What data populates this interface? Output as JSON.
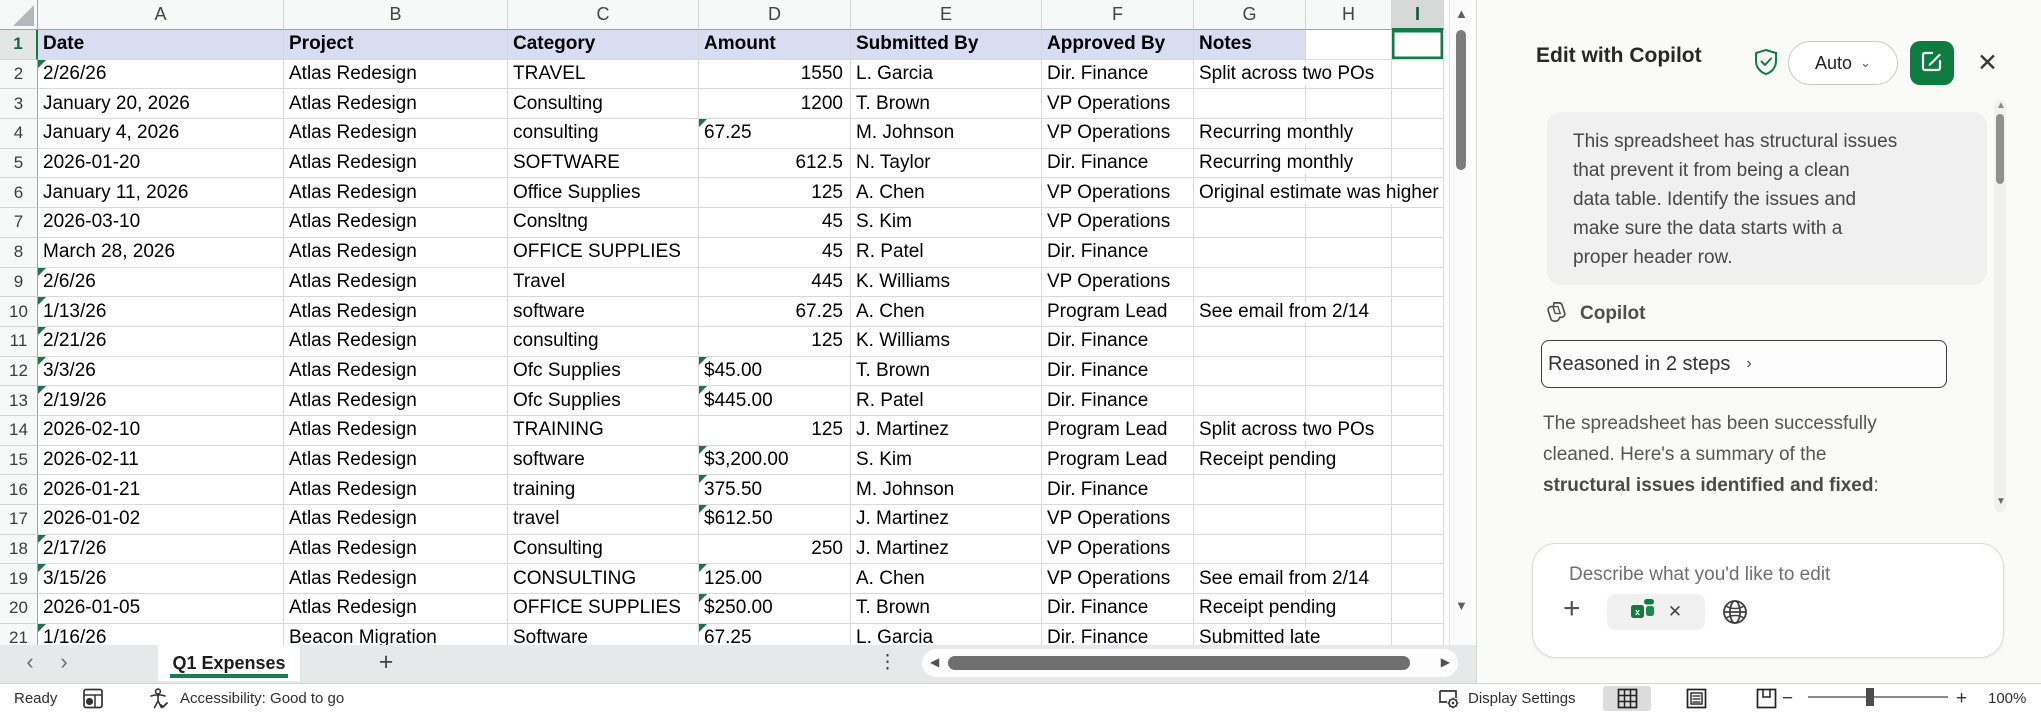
{
  "sheet": {
    "columns": [
      "A",
      "B",
      "C",
      "D",
      "E",
      "F",
      "G",
      "H",
      "I"
    ],
    "selected_column": "I",
    "selected_cell": "I1",
    "header_row": {
      "n": "1",
      "cells": [
        "Date",
        "Project",
        "Category",
        "Amount",
        "Submitted By",
        "Approved By",
        "Notes",
        "",
        ""
      ]
    },
    "rows": [
      {
        "n": "2",
        "date": "2/26/26",
        "date_flag": true,
        "project": "Atlas Redesign",
        "category": "TRAVEL",
        "amount": "1550",
        "amount_left": false,
        "amount_flag": false,
        "submitted": "L. Garcia",
        "approved": "Dir. Finance",
        "notes": "Split across two POs"
      },
      {
        "n": "3",
        "date": "January 20, 2026",
        "date_flag": false,
        "project": "Atlas Redesign",
        "category": "Consulting",
        "amount": "1200",
        "amount_left": false,
        "amount_flag": false,
        "submitted": "T. Brown",
        "approved": "VP Operations",
        "notes": ""
      },
      {
        "n": "4",
        "date": "January 4, 2026",
        "date_flag": false,
        "project": "Atlas Redesign",
        "category": "consulting",
        "amount": "67.25",
        "amount_left": true,
        "amount_flag": true,
        "submitted": "M. Johnson",
        "approved": "VP Operations",
        "notes": "Recurring monthly"
      },
      {
        "n": "5",
        "date": "2026-01-20",
        "date_flag": false,
        "project": "Atlas Redesign",
        "category": "SOFTWARE",
        "amount": "612.5",
        "amount_left": false,
        "amount_flag": false,
        "submitted": "N. Taylor",
        "approved": "Dir. Finance",
        "notes": "Recurring monthly"
      },
      {
        "n": "6",
        "date": "January 11, 2026",
        "date_flag": false,
        "project": "Atlas Redesign",
        "category": "Office Supplies",
        "amount": "125",
        "amount_left": false,
        "amount_flag": false,
        "submitted": "A. Chen",
        "approved": "VP Operations",
        "notes": "Original estimate was higher"
      },
      {
        "n": "7",
        "date": "2026-03-10",
        "date_flag": false,
        "project": "Atlas Redesign",
        "category": "Consltng",
        "amount": "45",
        "amount_left": false,
        "amount_flag": false,
        "submitted": "S. Kim",
        "approved": "VP Operations",
        "notes": ""
      },
      {
        "n": "8",
        "date": "March 28, 2026",
        "date_flag": false,
        "project": "Atlas Redesign",
        "category": "OFFICE SUPPLIES",
        "amount": "45",
        "amount_left": false,
        "amount_flag": false,
        "submitted": "R. Patel",
        "approved": "Dir. Finance",
        "notes": ""
      },
      {
        "n": "9",
        "date": "2/6/26",
        "date_flag": true,
        "project": "Atlas Redesign",
        "category": "Travel",
        "amount": "445",
        "amount_left": false,
        "amount_flag": false,
        "submitted": "K. Williams",
        "approved": "VP Operations",
        "notes": ""
      },
      {
        "n": "10",
        "date": "1/13/26",
        "date_flag": true,
        "project": "Atlas Redesign",
        "category": "software",
        "amount": "67.25",
        "amount_left": false,
        "amount_flag": false,
        "submitted": "A. Chen",
        "approved": "Program Lead",
        "notes": "See email from 2/14"
      },
      {
        "n": "11",
        "date": "2/21/26",
        "date_flag": true,
        "project": "Atlas Redesign",
        "category": "consulting",
        "amount": "125",
        "amount_left": false,
        "amount_flag": false,
        "submitted": "K. Williams",
        "approved": "Dir. Finance",
        "notes": ""
      },
      {
        "n": "12",
        "date": "3/3/26",
        "date_flag": true,
        "project": "Atlas Redesign",
        "category": "Ofc Supplies",
        "amount": "$45.00",
        "amount_left": true,
        "amount_flag": true,
        "submitted": "T. Brown",
        "approved": "Dir. Finance",
        "notes": ""
      },
      {
        "n": "13",
        "date": "2/19/26",
        "date_flag": true,
        "project": "Atlas Redesign",
        "category": "Ofc Supplies",
        "amount": "$445.00",
        "amount_left": true,
        "amount_flag": true,
        "submitted": "R. Patel",
        "approved": "Dir. Finance",
        "notes": ""
      },
      {
        "n": "14",
        "date": "2026-02-10",
        "date_flag": false,
        "project": "Atlas Redesign",
        "category": "TRAINING",
        "amount": "125",
        "amount_left": false,
        "amount_flag": false,
        "submitted": "J. Martinez",
        "approved": "Program Lead",
        "notes": "Split across two POs"
      },
      {
        "n": "15",
        "date": "2026-02-11",
        "date_flag": false,
        "project": "Atlas Redesign",
        "category": "software",
        "amount": "$3,200.00",
        "amount_left": true,
        "amount_flag": true,
        "submitted": "S. Kim",
        "approved": "Program Lead",
        "notes": "Receipt pending"
      },
      {
        "n": "16",
        "date": "2026-01-21",
        "date_flag": false,
        "project": "Atlas Redesign",
        "category": "training",
        "amount": "375.50",
        "amount_left": true,
        "amount_flag": true,
        "submitted": "M. Johnson",
        "approved": "Dir. Finance",
        "notes": ""
      },
      {
        "n": "17",
        "date": "2026-01-02",
        "date_flag": false,
        "project": "Atlas Redesign",
        "category": "travel",
        "amount": "$612.50",
        "amount_left": true,
        "amount_flag": true,
        "submitted": "J. Martinez",
        "approved": "VP Operations",
        "notes": ""
      },
      {
        "n": "18",
        "date": "2/17/26",
        "date_flag": true,
        "project": "Atlas Redesign",
        "category": "Consulting",
        "amount": "250",
        "amount_left": false,
        "amount_flag": false,
        "submitted": "J. Martinez",
        "approved": "VP Operations",
        "notes": ""
      },
      {
        "n": "19",
        "date": "3/15/26",
        "date_flag": true,
        "project": "Atlas Redesign",
        "category": "CONSULTING",
        "amount": "125.00",
        "amount_left": true,
        "amount_flag": true,
        "submitted": "A. Chen",
        "approved": "VP Operations",
        "notes": "See email from 2/14"
      },
      {
        "n": "20",
        "date": "2026-01-05",
        "date_flag": false,
        "project": "Atlas Redesign",
        "category": "OFFICE SUPPLIES",
        "amount": "$250.00",
        "amount_left": true,
        "amount_flag": true,
        "submitted": "T. Brown",
        "approved": "Dir. Finance",
        "notes": "Receipt pending"
      },
      {
        "n": "21",
        "date": "1/16/26",
        "date_flag": true,
        "project": "Beacon Migration",
        "category": "Software",
        "amount": "67.25",
        "amount_left": true,
        "amount_flag": true,
        "submitted": "L. Garcia",
        "approved": "Dir. Finance",
        "notes": "Submitted late"
      }
    ]
  },
  "tab_bar": {
    "prev": "‹",
    "next": "›",
    "active_tab": "Q1 Expenses",
    "add_sheet": "+",
    "more": "⋮",
    "scroll_left": "◀",
    "scroll_right": "▶"
  },
  "status_bar": {
    "ready": "Ready",
    "accessibility": "Accessibility: Good to go",
    "display_settings": "Display Settings",
    "zoom_out": "−",
    "zoom_in": "+",
    "zoom_level": "100%"
  },
  "panel": {
    "title": "Edit with Copilot",
    "mode": "Auto",
    "mode_chevron": "⌄",
    "close": "✕",
    "prompt_lines": [
      "This spreadsheet has structural issues",
      "that prevent it from being a clean",
      "data table. Identify the issues and",
      "make sure the data starts with a",
      "proper header row."
    ],
    "copilot_label": "Copilot",
    "reasoned": "Reasoned in 2 steps",
    "reasoned_chevron": "›",
    "summary_lines": [
      "The spreadsheet has been successfully",
      "cleaned. Here's a summary of the"
    ],
    "summary_bold": "structural issues identified and fixed",
    "summary_suffix": ":",
    "input_placeholder": "Describe what you'd like to edit",
    "add_context": "+",
    "scroll_up": "▲",
    "scroll_down": "▼"
  },
  "colors": {
    "excel_green": "#107C41",
    "header_fill": "#d9ddf2",
    "flag_green": "#217346",
    "tab_underline": "#17804a"
  }
}
